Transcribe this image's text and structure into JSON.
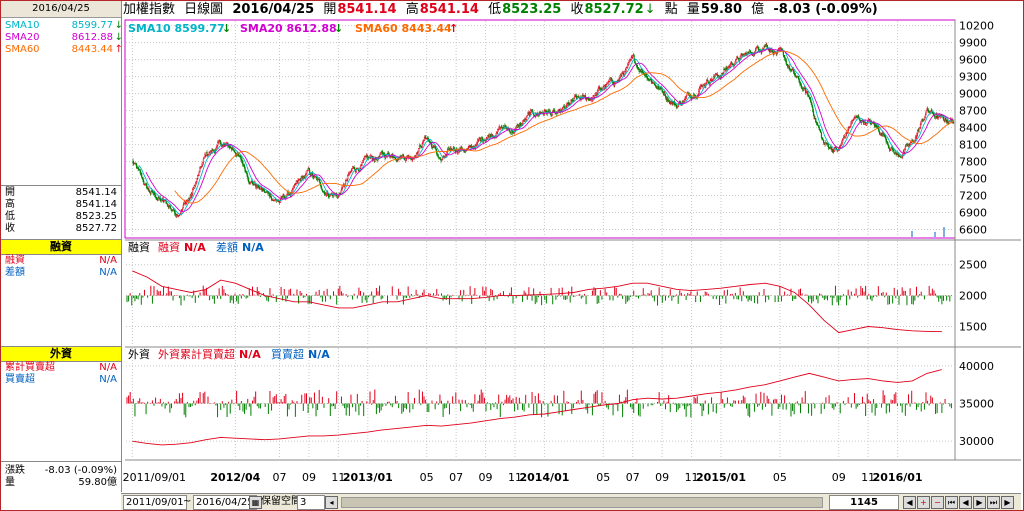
{
  "title": {
    "name": "加權指數",
    "period": "日線圖",
    "date": "2016/04/25",
    "open_label": "開",
    "open": "8541.14",
    "high_label": "高",
    "high": "8541.14",
    "low_label": "低",
    "low": "8523.25",
    "close_label": "收",
    "close": "8527.72",
    "unit_point": "點",
    "vol_label": "量",
    "vol": "59.80",
    "vol_unit": "億",
    "change": "-8.03 (-0.09%)"
  },
  "left": {
    "date": "2016/04/25",
    "sma": [
      {
        "label": "SMA10",
        "value": "8599.77",
        "arrow": "↓",
        "color": "#00b4c8"
      },
      {
        "label": "SMA20",
        "value": "8612.88",
        "arrow": "↓",
        "color": "#d200d2"
      },
      {
        "label": "SMA60",
        "value": "8443.44",
        "arrow": "↑",
        "color": "#ff6a00"
      }
    ],
    "ohlc": [
      {
        "label": "開",
        "value": "8541.14"
      },
      {
        "label": "高",
        "value": "8541.14"
      },
      {
        "label": "低",
        "value": "8523.25"
      },
      {
        "label": "收",
        "value": "8527.72"
      }
    ],
    "margin_header": "融資",
    "margin_rows": [
      {
        "label": "融資",
        "value": "N/A"
      },
      {
        "label": "差額",
        "value": "N/A"
      }
    ],
    "foreign_header": "外資",
    "foreign_rows": [
      {
        "label": "累計買賣超",
        "value": "N/A"
      },
      {
        "label": "買賣超",
        "value": "N/A"
      }
    ],
    "bottom_rows": [
      {
        "label": "漲跌",
        "value": "-8.03 (-0.09%)"
      },
      {
        "label": "量",
        "value": "59.80億"
      }
    ]
  },
  "legends": {
    "price": [
      {
        "text": "SMA10 8599.77",
        "arrow": "↓"
      },
      {
        "text": "SMA20 8612.88",
        "arrow": "↓"
      },
      {
        "text": "SMA60 8443.44",
        "arrow": "↑"
      }
    ],
    "margin": {
      "title": "融資",
      "items": [
        {
          "text": "融資",
          "value": "N/A"
        },
        {
          "text": "差額",
          "value": "N/A"
        }
      ]
    },
    "foreign": {
      "title": "外資",
      "items": [
        {
          "text": "外資累計買賣超",
          "value": "N/A"
        },
        {
          "text": "買賣超",
          "value": "N/A"
        }
      ]
    }
  },
  "chart_data": [
    {
      "type": "line",
      "panel": "price",
      "yticks": [
        10200,
        9900,
        9600,
        9300,
        9000,
        8700,
        8400,
        8100,
        7800,
        7500,
        7200,
        6900,
        6600
      ],
      "ylim": [
        6450,
        10300
      ],
      "xlim": [
        "2011/09",
        "2016/04"
      ],
      "x_tick_labels": [
        "2011/09/01",
        "2012/04",
        "07",
        "09",
        "11",
        "2013/01",
        "05",
        "07",
        "09",
        "11",
        "2014/01",
        "05",
        "07",
        "09",
        "11",
        "2015/01",
        "05",
        "09",
        "11",
        "2016/01"
      ],
      "x_tick_dates": [
        "2011-09",
        "2012-04",
        "2012-07",
        "2012-09",
        "2012-11",
        "2013-01",
        "2013-05",
        "2013-07",
        "2013-09",
        "2013-11",
        "2014-01",
        "2014-05",
        "2014-07",
        "2014-09",
        "2014-11",
        "2015-01",
        "2015-05",
        "2015-09",
        "2015-11",
        "2016-01"
      ],
      "series": [
        {
          "name": "SMA10",
          "color": "#00b4c8"
        },
        {
          "name": "SMA20",
          "color": "#d200d2"
        },
        {
          "name": "SMA60",
          "color": "#ff6a00"
        }
      ],
      "x": [
        "2011-09",
        "2011-10",
        "2011-11",
        "2011-12",
        "2012-01",
        "2012-02",
        "2012-03",
        "2012-04",
        "2012-05",
        "2012-06",
        "2012-07",
        "2012-08",
        "2012-09",
        "2012-10",
        "2012-11",
        "2012-12",
        "2013-01",
        "2013-02",
        "2013-03",
        "2013-04",
        "2013-05",
        "2013-06",
        "2013-07",
        "2013-08",
        "2013-09",
        "2013-10",
        "2013-11",
        "2013-12",
        "2014-01",
        "2014-02",
        "2014-03",
        "2014-04",
        "2014-05",
        "2014-06",
        "2014-07",
        "2014-08",
        "2014-09",
        "2014-10",
        "2014-11",
        "2014-12",
        "2015-01",
        "2015-02",
        "2015-03",
        "2015-04",
        "2015-05",
        "2015-06",
        "2015-07",
        "2015-08",
        "2015-09",
        "2015-10",
        "2015-11",
        "2015-12",
        "2016-01",
        "2016-02",
        "2016-03",
        "2016-04"
      ],
      "close": [
        7800,
        7300,
        7100,
        6900,
        7200,
        7900,
        8100,
        8000,
        7500,
        7250,
        7100,
        7300,
        7600,
        7300,
        7200,
        7650,
        7800,
        7900,
        7950,
        7900,
        8250,
        7800,
        8050,
        8000,
        8250,
        8400,
        8350,
        8600,
        8700,
        8600,
        8850,
        8900,
        9100,
        9250,
        9550,
        9350,
        9050,
        8800,
        9000,
        9250,
        9350,
        9600,
        9700,
        9900,
        9700,
        9300,
        8900,
        8100,
        8000,
        8550,
        8500,
        8300,
        7900,
        8100,
        8700,
        8530
      ]
    },
    {
      "type": "bar",
      "panel": "margin",
      "yticks": [
        2500,
        2000,
        1500
      ],
      "ylim": [
        1200,
        2900
      ],
      "line": [
        2400,
        2300,
        2150,
        2100,
        2050,
        2100,
        2250,
        2200,
        2100,
        2000,
        1950,
        1900,
        1900,
        1850,
        1800,
        1800,
        1850,
        1900,
        1900,
        1950,
        2000,
        1950,
        1950,
        1950,
        1970,
        2000,
        2000,
        2010,
        2020,
        2030,
        2050,
        2100,
        2120,
        2150,
        2200,
        2200,
        2150,
        2100,
        2080,
        2100,
        2120,
        2150,
        2180,
        2200,
        2150,
        2050,
        1850,
        1600,
        1400,
        1450,
        1500,
        1480,
        1450,
        1430,
        1420,
        1420
      ]
    },
    {
      "type": "bar",
      "panel": "foreign",
      "yticks": [
        40000,
        35000,
        30000
      ],
      "ylim": [
        27500,
        42500
      ],
      "line": [
        30000,
        29700,
        29500,
        29600,
        29800,
        30200,
        30500,
        30400,
        30300,
        30200,
        30300,
        30500,
        30700,
        30700,
        30800,
        31000,
        31200,
        31500,
        31700,
        31900,
        32100,
        32000,
        32200,
        32400,
        32700,
        33000,
        33200,
        33500,
        33600,
        33900,
        34200,
        34500,
        34800,
        35000,
        35500,
        35700,
        35600,
        35700,
        36000,
        36300,
        36500,
        36800,
        37200,
        37500,
        38000,
        38500,
        39000,
        38500,
        38000,
        38200,
        38300,
        38000,
        37800,
        38000,
        39000,
        39500
      ]
    }
  ],
  "bottom": {
    "from": "2011/09/01",
    "tilde": "~",
    "to": "2016/04/25",
    "keep": "保留空間",
    "keep_val": "3",
    "count": "1145"
  }
}
